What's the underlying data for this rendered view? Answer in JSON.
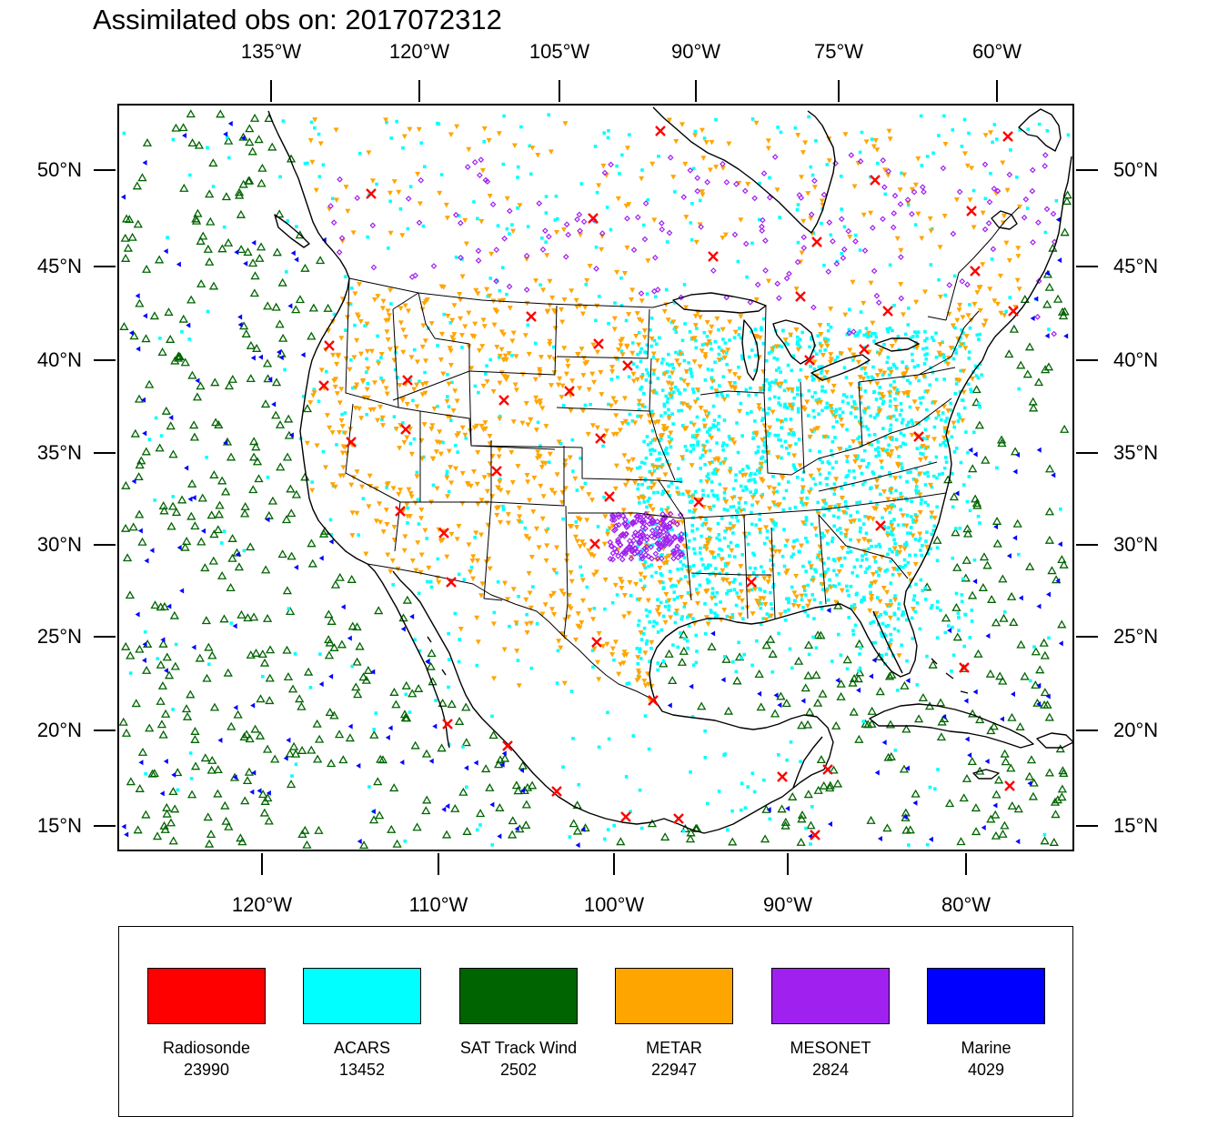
{
  "title": "Assimilated obs on: 2017072312",
  "axes": {
    "top_lon": [
      "135°W",
      "120°W",
      "105°W",
      "90°W",
      "75°W",
      "60°W"
    ],
    "bottom_lon": [
      "120°W",
      "110°W",
      "100°W",
      "90°W",
      "80°W"
    ],
    "left_lat": [
      "50°N",
      "45°N",
      "40°N",
      "35°N",
      "30°N",
      "25°N",
      "20°N",
      "15°N"
    ],
    "right_lat": [
      "50°N",
      "45°N",
      "40°N",
      "35°N",
      "30°N",
      "25°N",
      "20°N",
      "15°N"
    ]
  },
  "legend": [
    {
      "name": "Radiosonde",
      "count": "23990",
      "color": "#ff0000"
    },
    {
      "name": "ACARS",
      "count": "13452",
      "color": "#00ffff"
    },
    {
      "name": "SAT Track Wind",
      "count": "2502",
      "color": "#006400"
    },
    {
      "name": "METAR",
      "count": "22947",
      "color": "#ffa500"
    },
    {
      "name": "MESONET",
      "count": "2824",
      "color": "#a020f0"
    },
    {
      "name": "Marine",
      "count": "4029",
      "color": "#0000ff"
    }
  ],
  "colors": {
    "coast": "#000000",
    "radiosonde": "#ff0000",
    "acars": "#00ffff",
    "sat_track_wind": "#006400",
    "metar": "#ffa500",
    "mesonet": "#a020f0",
    "marine": "#0000ff"
  }
}
